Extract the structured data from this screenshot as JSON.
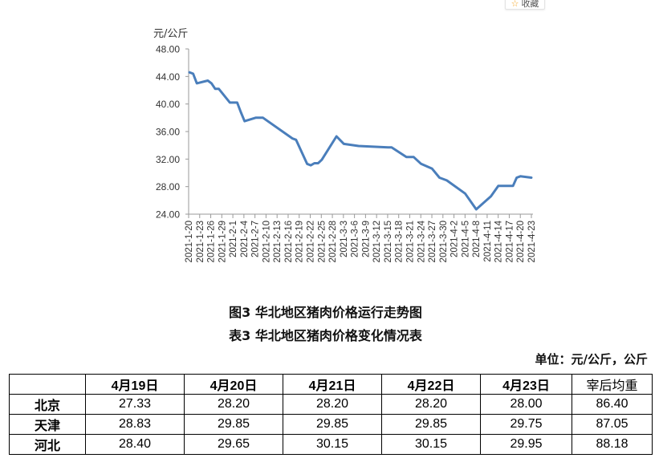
{
  "toolbar": {
    "favorite_icon": "star-icon",
    "favorite_label": "收藏"
  },
  "chart": {
    "unit_label": "元/公斤",
    "figure_caption": "图3 华北地区猪肉价格运行走势图",
    "line_color": "#4a7ebb",
    "y_ticks": [
      "48.00",
      "44.00",
      "40.00",
      "36.00",
      "32.00",
      "28.00",
      "24.00"
    ],
    "x_ticks": [
      "2021-1-20",
      "2021-1-23",
      "2021-1-26",
      "2021-1-29",
      "2021-2-1",
      "2021-2-4",
      "2021-2-7",
      "2021-2-10",
      "2021-2-13",
      "2021-2-16",
      "2021-2-19",
      "2021-2-22",
      "2021-2-25",
      "2021-2-28",
      "2021-3-3",
      "2021-3-6",
      "2021-3-9",
      "2021-3-12",
      "2021-3-15",
      "2021-3-18",
      "2021-3-21",
      "2021-3-24",
      "2021-3-27",
      "2021-3-30",
      "2021-4-2",
      "2021-4-5",
      "2021-4-8",
      "2021-4-11",
      "2021-4-14",
      "2021-4-17",
      "2021-4-20",
      "2021-4-23"
    ]
  },
  "chart_data": {
    "type": "line",
    "title": "图3 华北地区猪肉价格运行走势图",
    "xlabel": "",
    "ylabel": "元/公斤",
    "ylim": [
      24,
      48
    ],
    "yticks": [
      24,
      28,
      32,
      36,
      40,
      44,
      48
    ],
    "grid": false,
    "legend": null,
    "series": [
      {
        "name": "华北地区猪肉价格",
        "x": [
          "2021-1-20",
          "2021-1-21",
          "2021-1-22",
          "2021-1-25",
          "2021-1-26",
          "2021-1-27",
          "2021-1-28",
          "2021-1-31",
          "2021-2-2",
          "2021-2-3",
          "2021-2-4",
          "2021-2-7",
          "2021-2-9",
          "2021-2-17",
          "2021-2-18",
          "2021-2-21",
          "2021-2-22",
          "2021-2-23",
          "2021-2-24",
          "2021-2-25",
          "2021-3-1",
          "2021-3-3",
          "2021-3-7",
          "2021-3-15",
          "2021-3-16",
          "2021-3-20",
          "2021-3-22",
          "2021-3-24",
          "2021-3-27",
          "2021-3-29",
          "2021-3-31",
          "2021-4-5",
          "2021-4-8",
          "2021-4-12",
          "2021-4-14",
          "2021-4-18",
          "2021-4-19",
          "2021-4-20",
          "2021-4-23"
        ],
        "y": [
          44.6,
          44.4,
          43.0,
          43.4,
          43.0,
          42.2,
          42.2,
          40.2,
          40.2,
          38.8,
          37.5,
          38.0,
          38.0,
          35.0,
          34.8,
          31.3,
          31.1,
          31.4,
          31.4,
          31.9,
          35.3,
          34.2,
          33.9,
          33.7,
          33.7,
          32.3,
          32.3,
          31.3,
          30.6,
          29.3,
          28.9,
          27.0,
          24.7,
          26.6,
          28.1,
          28.1,
          29.3,
          29.5,
          29.3
        ]
      }
    ]
  },
  "table": {
    "caption": "表3 华北地区猪肉价格变化情况表",
    "unit_note": "单位：元/公斤，公斤",
    "headers": [
      "",
      "4月19日",
      "4月20日",
      "4月21日",
      "4月22日",
      "4月23日",
      "宰后均重"
    ],
    "rows": [
      {
        "region": "北京",
        "values": [
          "27.33",
          "28.20",
          "28.20",
          "28.20",
          "28.00",
          "86.40"
        ]
      },
      {
        "region": "天津",
        "values": [
          "28.83",
          "29.85",
          "29.85",
          "29.85",
          "29.75",
          "87.05"
        ]
      },
      {
        "region": "河北",
        "values": [
          "28.40",
          "29.65",
          "30.15",
          "30.15",
          "29.95",
          "88.18"
        ]
      }
    ]
  }
}
